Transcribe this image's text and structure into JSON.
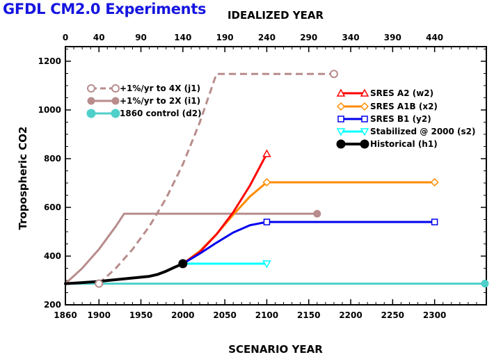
{
  "page_title": "GFDL CM2.0 Experiments",
  "colors": {
    "title": "#1515e0",
    "j1": "#b88c8c",
    "i1": "#b88c8c",
    "d2": "#4ecfc9",
    "w2": "#ff0000",
    "x2": "#ff8c00",
    "y2": "#0000ee",
    "s2": "#00ffff",
    "h1": "#000000"
  },
  "chart_data": {
    "type": "line",
    "title": "GFDL CM2.0 Experiments",
    "xlabel": "SCENARIO YEAR",
    "ylabel": "Tropospheric CO2",
    "top_xlabel": "IDEALIZED YEAR",
    "xlim": [
      1860,
      2360
    ],
    "ylim": [
      200,
      1260
    ],
    "xticks": [
      "1860",
      "1900",
      "1950",
      "2000",
      "2050",
      "2100",
      "2150",
      "2200",
      "2250",
      "2300"
    ],
    "xtick_values": [
      1860,
      1900,
      1950,
      2000,
      2050,
      2100,
      2150,
      2200,
      2250,
      2300
    ],
    "yticks": [
      "200",
      "400",
      "600",
      "800",
      "1000",
      "1200"
    ],
    "ytick_values": [
      200,
      400,
      600,
      800,
      1000,
      1200
    ],
    "top_xticks": [
      "0",
      "40",
      "90",
      "140",
      "190",
      "240",
      "290",
      "340",
      "390",
      "440"
    ],
    "grid": false,
    "legend_groups": [
      {
        "placement": "top-left",
        "series": [
          "j1",
          "i1",
          "d2"
        ]
      },
      {
        "placement": "top-right",
        "series": [
          "w2",
          "x2",
          "y2",
          "s2",
          "h1"
        ]
      }
    ],
    "series": [
      {
        "id": "j1",
        "name": "+1%/yr to 4X (j1)",
        "style": "dashed",
        "marker": "open-circle",
        "x": [
          1900,
          1920,
          1940,
          1960,
          1980,
          2000,
          2020,
          2040,
          2060,
          2080,
          2100,
          2120,
          2140,
          2180
        ],
        "y": [
          287,
          350,
          428,
          522,
          637,
          777,
          948,
          1148,
          1148,
          1148,
          1148,
          1148,
          1148,
          1148
        ]
      },
      {
        "id": "i1",
        "name": "+1%/yr to 2X (i1)",
        "style": "solid",
        "marker": "filled-circle",
        "x": [
          1860,
          1880,
          1900,
          1920,
          1930,
          1950,
          2000,
          2050,
          2100,
          2150,
          2160
        ],
        "y": [
          287,
          350,
          428,
          522,
          574,
          574,
          574,
          574,
          574,
          574,
          574
        ]
      },
      {
        "id": "d2",
        "name": "1860 control (d2)",
        "style": "solid",
        "marker": "filled-circle",
        "x": [
          1860,
          1950,
          2050,
          2150,
          2250,
          2360
        ],
        "y": [
          287,
          287,
          287,
          287,
          287,
          287
        ]
      },
      {
        "id": "w2",
        "name": "SRES A2 (w2)",
        "style": "solid",
        "marker": "open-triangle-up",
        "x": [
          2000,
          2020,
          2040,
          2060,
          2080,
          2100
        ],
        "y": [
          369,
          416,
          489,
          580,
          690,
          820
        ]
      },
      {
        "id": "x2",
        "name": "SRES A1B (x2)",
        "style": "solid",
        "marker": "open-diamond",
        "x": [
          2000,
          2020,
          2040,
          2060,
          2080,
          2100,
          2150,
          2200,
          2250,
          2300
        ],
        "y": [
          369,
          420,
          490,
          570,
          645,
          703,
          703,
          703,
          703,
          703
        ]
      },
      {
        "id": "y2",
        "name": "SRES B1 (y2)",
        "style": "solid",
        "marker": "open-square",
        "x": [
          2000,
          2020,
          2040,
          2060,
          2080,
          2100,
          2150,
          2200,
          2250,
          2300
        ],
        "y": [
          369,
          410,
          455,
          497,
          527,
          540,
          540,
          540,
          540,
          540
        ]
      },
      {
        "id": "s2",
        "name": "Stabilized @ 2000 (s2)",
        "style": "solid",
        "marker": "open-triangle-down",
        "x": [
          2000,
          2050,
          2100
        ],
        "y": [
          369,
          369,
          369
        ]
      },
      {
        "id": "h1",
        "name": "Historical (h1)",
        "style": "solid",
        "marker": "filled-circle",
        "x": [
          1860,
          1880,
          1900,
          1920,
          1940,
          1960,
          1970,
          1980,
          1990,
          2000
        ],
        "y": [
          287,
          291,
          296,
          303,
          310,
          317,
          325,
          338,
          354,
          369
        ]
      }
    ]
  }
}
